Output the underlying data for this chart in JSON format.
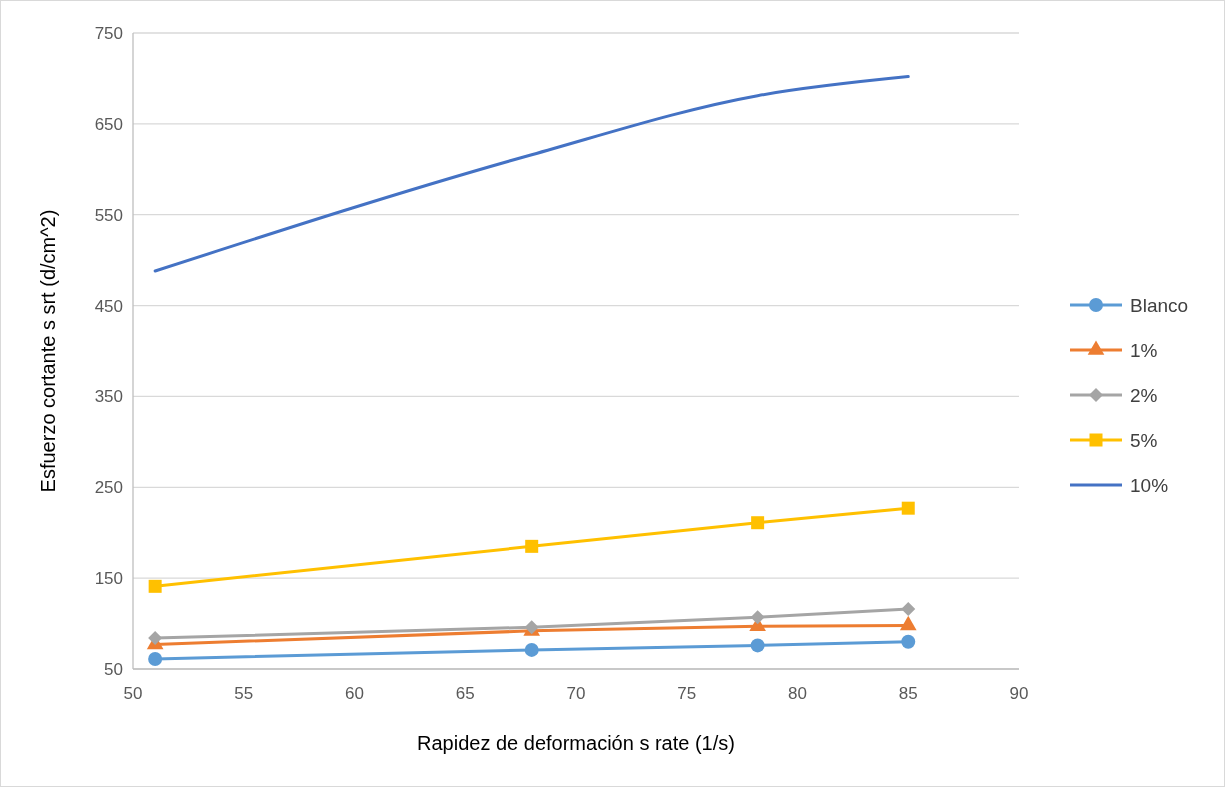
{
  "chart_data": {
    "type": "line",
    "xlabel": "Rapidez de deformación s rate (1/s)",
    "ylabel": "Esfuerzo cortante s srt (d/cm^2)",
    "x": [
      51,
      68,
      78.2,
      85
    ],
    "xlim": [
      50,
      90
    ],
    "xticks": [
      50,
      55,
      60,
      65,
      70,
      75,
      80,
      85,
      90
    ],
    "ylim": [
      50,
      750
    ],
    "yticks": [
      50,
      150,
      250,
      350,
      450,
      550,
      650,
      750
    ],
    "grid": "y",
    "legend": "right",
    "series": [
      {
        "name": "Blanco",
        "color": "#5b9bd5",
        "marker": "circle",
        "values": [
          61,
          71,
          76,
          80
        ]
      },
      {
        "name": "1%",
        "color": "#ed7d31",
        "marker": "triangle",
        "values": [
          77,
          92,
          97,
          98
        ]
      },
      {
        "name": "2%",
        "color": "#a5a5a5",
        "marker": "diamond",
        "values": [
          84,
          96,
          107,
          116
        ]
      },
      {
        "name": "5%",
        "color": "#ffc000",
        "marker": "square",
        "values": [
          141,
          185,
          211,
          227
        ]
      },
      {
        "name": "10%",
        "color": "#4472c4",
        "marker": "none",
        "values": [
          488,
          616,
          681,
          702
        ]
      }
    ]
  }
}
